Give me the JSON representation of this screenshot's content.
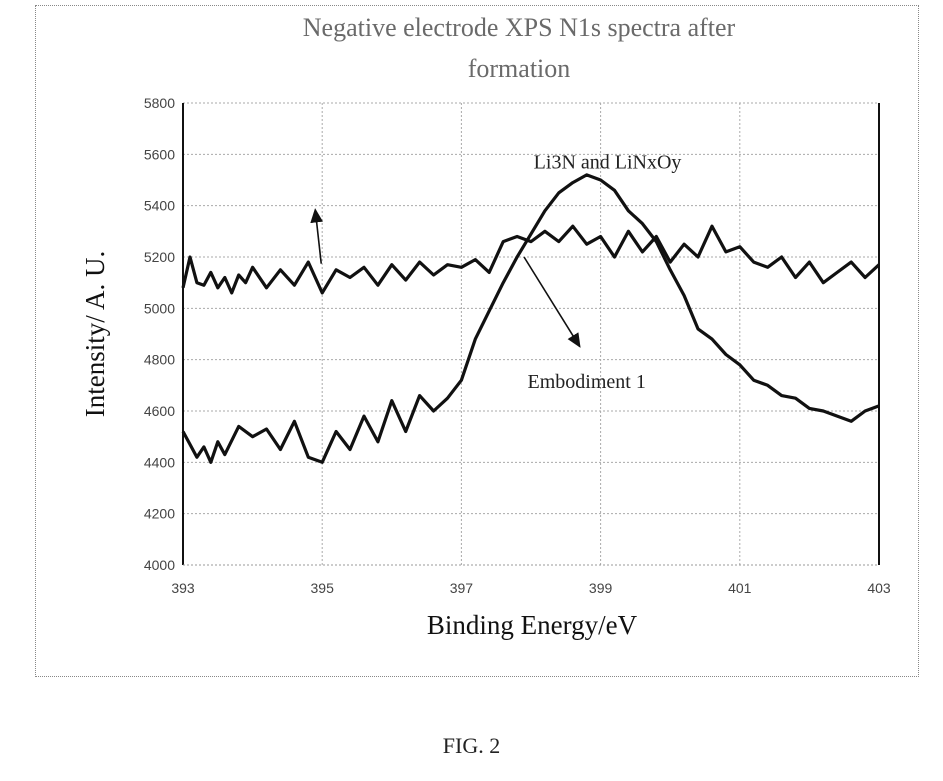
{
  "chart_data": {
    "type": "line",
    "title_lines": [
      "Negative electrode XPS N1s spectra after",
      "formation"
    ],
    "xlabel": "Binding Energy/eV",
    "ylabel": "Intensity/ A. U.",
    "xlim": [
      393,
      403
    ],
    "ylim": [
      4000,
      5800
    ],
    "xticks": [
      393,
      395,
      397,
      399,
      401,
      403
    ],
    "yticks": [
      4000,
      4200,
      4400,
      4600,
      4800,
      5000,
      5200,
      5400,
      5600,
      5800
    ],
    "grid": true,
    "series": [
      {
        "name": "Li3N and LiNxOy",
        "x": [
          393.0,
          393.1,
          393.2,
          393.3,
          393.4,
          393.5,
          393.6,
          393.7,
          393.8,
          393.9,
          394.0,
          394.2,
          394.4,
          394.6,
          394.8,
          395.0,
          395.2,
          395.4,
          395.6,
          395.8,
          396.0,
          396.2,
          396.4,
          396.6,
          396.8,
          397.0,
          397.2,
          397.4,
          397.6,
          397.8,
          398.0,
          398.2,
          398.4,
          398.6,
          398.8,
          399.0,
          399.2,
          399.4,
          399.6,
          399.8,
          400.0,
          400.2,
          400.4,
          400.6,
          400.8,
          401.0,
          401.2,
          401.4,
          401.6,
          401.8,
          402.0,
          402.2,
          402.4,
          402.6,
          402.8,
          403.0
        ],
        "y": [
          5080,
          5200,
          5100,
          5090,
          5140,
          5080,
          5120,
          5060,
          5130,
          5100,
          5160,
          5080,
          5150,
          5090,
          5180,
          5060,
          5150,
          5120,
          5160,
          5090,
          5170,
          5110,
          5180,
          5130,
          5170,
          5160,
          5190,
          5140,
          5260,
          5280,
          5260,
          5300,
          5260,
          5320,
          5250,
          5280,
          5200,
          5300,
          5220,
          5280,
          5180,
          5250,
          5200,
          5320,
          5220,
          5240,
          5180,
          5160,
          5200,
          5120,
          5180,
          5100,
          5140,
          5180,
          5120,
          5170
        ]
      },
      {
        "name": "Embodiment 1",
        "x": [
          393.0,
          393.1,
          393.2,
          393.3,
          393.4,
          393.5,
          393.6,
          393.8,
          394.0,
          394.2,
          394.4,
          394.6,
          394.8,
          395.0,
          395.2,
          395.4,
          395.6,
          395.8,
          396.0,
          396.2,
          396.4,
          396.6,
          396.8,
          397.0,
          397.2,
          397.4,
          397.6,
          397.8,
          398.0,
          398.2,
          398.4,
          398.6,
          398.8,
          399.0,
          399.2,
          399.4,
          399.6,
          399.8,
          400.0,
          400.2,
          400.4,
          400.6,
          400.8,
          401.0,
          401.2,
          401.4,
          401.6,
          401.8,
          402.0,
          402.2,
          402.4,
          402.6,
          402.8,
          403.0
        ],
        "y": [
          4520,
          4470,
          4420,
          4460,
          4400,
          4480,
          4430,
          4540,
          4500,
          4530,
          4450,
          4560,
          4420,
          4400,
          4520,
          4450,
          4580,
          4480,
          4640,
          4520,
          4660,
          4600,
          4650,
          4720,
          4880,
          4990,
          5100,
          5200,
          5290,
          5380,
          5450,
          5490,
          5520,
          5500,
          5460,
          5380,
          5330,
          5260,
          5150,
          5050,
          4920,
          4880,
          4820,
          4780,
          4720,
          4700,
          4660,
          4650,
          4610,
          4600,
          4580,
          4560,
          4600,
          4620
        ]
      }
    ],
    "annotations": [
      {
        "text": "Li3N and LiNxOy",
        "arrow_to": [
          394.9,
          5400
        ]
      },
      {
        "text": "Embodiment 1",
        "arrow_to": [
          398.7,
          4820
        ]
      }
    ]
  },
  "caption": "FIG. 2"
}
